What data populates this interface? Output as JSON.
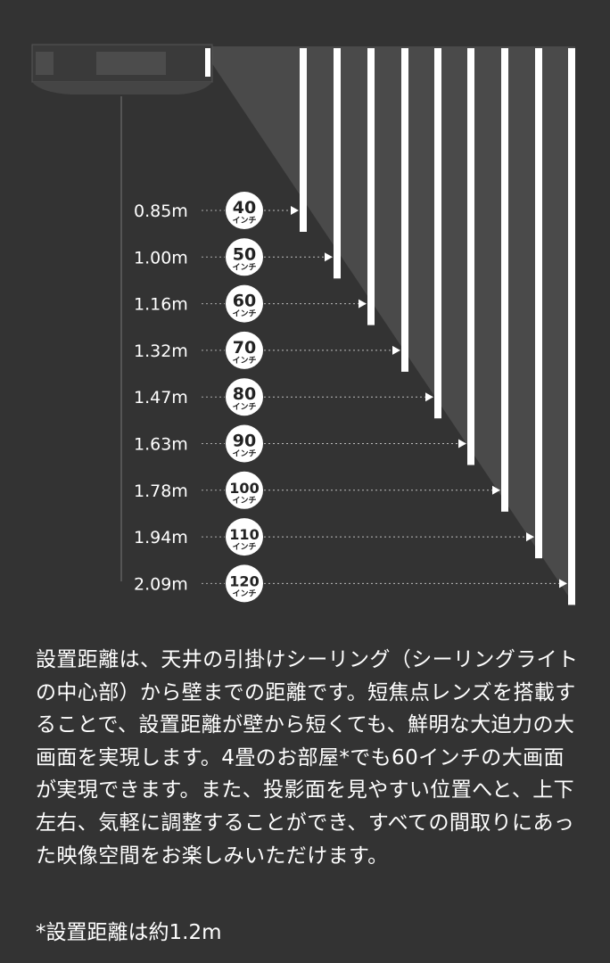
{
  "colors": {
    "background": "#333333",
    "beam": "#4a4a4a",
    "screen_bar": "#ffffff",
    "badge": "#ffffff",
    "badge_text": "#222222"
  },
  "icons": {
    "projector": "ceiling-projector-icon"
  },
  "rows": [
    {
      "distance": "0.85m",
      "size": "40",
      "unit": "インチ"
    },
    {
      "distance": "1.00m",
      "size": "50",
      "unit": "インチ"
    },
    {
      "distance": "1.16m",
      "size": "60",
      "unit": "インチ"
    },
    {
      "distance": "1.32m",
      "size": "70",
      "unit": "インチ"
    },
    {
      "distance": "1.47m",
      "size": "80",
      "unit": "インチ"
    },
    {
      "distance": "1.63m",
      "size": "90",
      "unit": "インチ"
    },
    {
      "distance": "1.78m",
      "size": "100",
      "unit": "インチ"
    },
    {
      "distance": "1.94m",
      "size": "110",
      "unit": "インチ"
    },
    {
      "distance": "2.09m",
      "size": "120",
      "unit": "インチ"
    }
  ],
  "description": "設置距離は、天井の引掛けシーリング（シーリングライトの中心部）から壁までの距離です。短焦点レンズを搭載することで、設置距離が壁から短くても、鮮明な大迫力の大画面を実現します。4畳のお部屋*でも60インチの大画面が実現できます。また、投影面を見やすい位置へと、上下左右、気軽に調整することができ、すべての間取りにあった映像空間をお楽しみいただけます。",
  "footnote": "*設置距離は約1.2m"
}
